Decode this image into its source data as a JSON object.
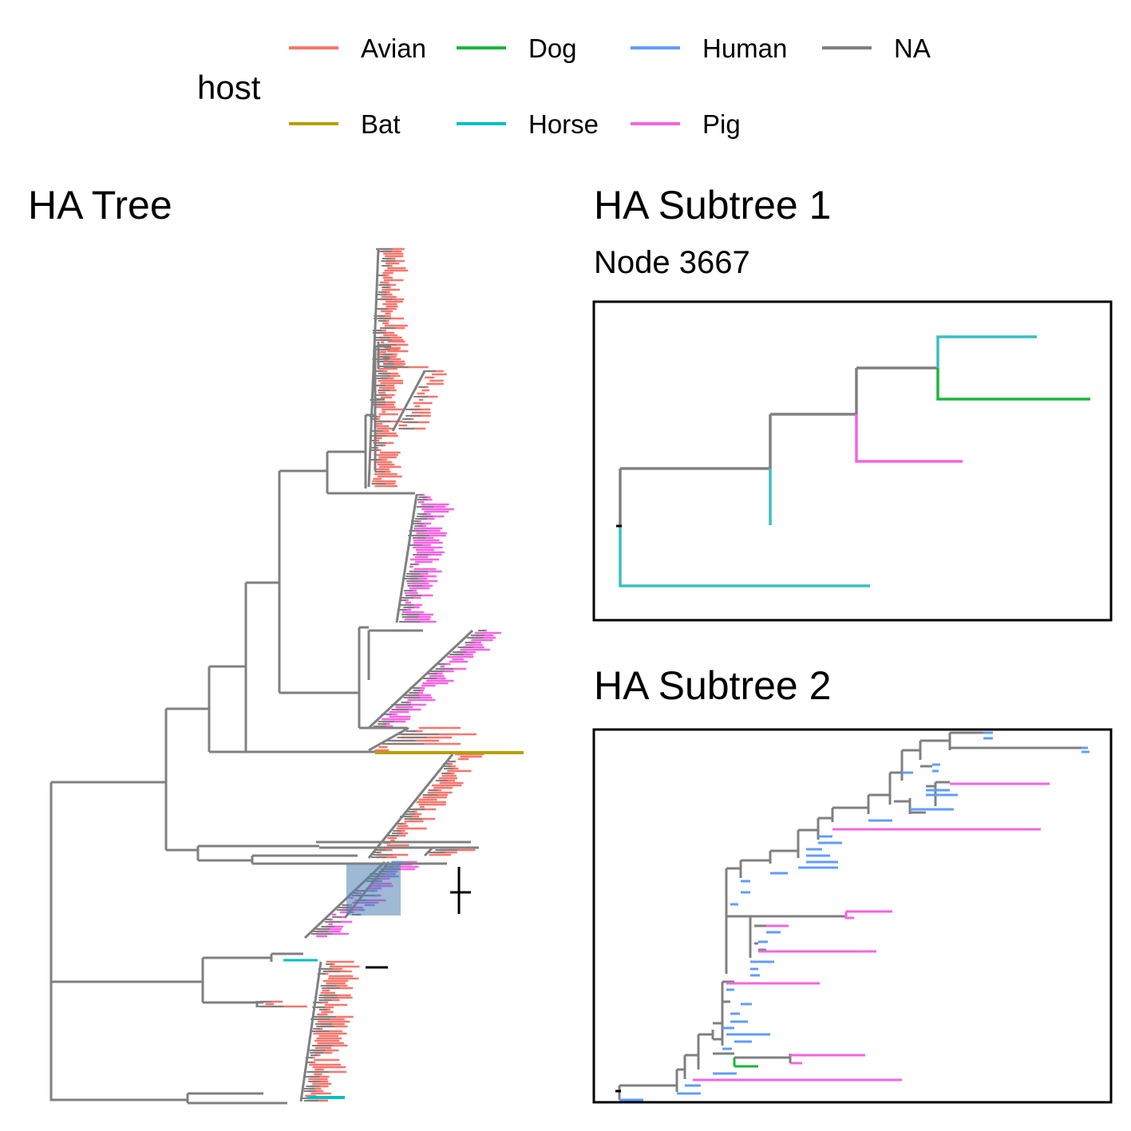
{
  "legend": {
    "title": "host",
    "items": [
      {
        "label": "Avian",
        "color": "#F8766D"
      },
      {
        "label": "Dog",
        "color": "#1DB53B"
      },
      {
        "label": "Human",
        "color": "#619CFF"
      },
      {
        "label": "NA",
        "color": "#808080"
      },
      {
        "label": "Bat",
        "color": "#B79F00"
      },
      {
        "label": "Horse",
        "color": "#00BFC4"
      },
      {
        "label": "Pig",
        "color": "#F564E3"
      }
    ]
  },
  "main_tree": {
    "title": "HA Tree",
    "labels": [
      "1",
      "2"
    ]
  },
  "subtree1": {
    "title": "HA Subtree 1",
    "subtitle": "Node 3667"
  },
  "subtree2": {
    "title": "HA Subtree 2"
  }
}
